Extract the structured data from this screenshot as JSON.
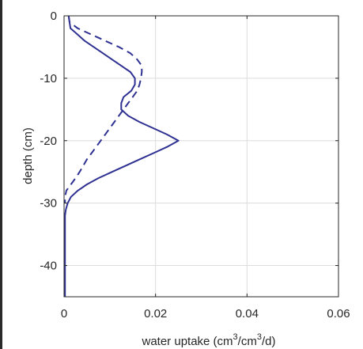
{
  "chart_data": {
    "type": "line",
    "title": "",
    "xlabel": "water uptake (cm",
    "xlabel_sup1": "3",
    "xlabel_mid": "/cm",
    "xlabel_sup2": "3",
    "xlabel_end": "/d)",
    "ylabel": "depth (cm)",
    "xlim": [
      0,
      0.06
    ],
    "ylim": [
      -45,
      0
    ],
    "xticks": [
      0,
      0.02,
      0.04,
      0.06
    ],
    "xtick_labels": [
      "0",
      "0.02",
      "0.04",
      "0.06"
    ],
    "yticks": [
      0,
      -10,
      -20,
      -30,
      -40
    ],
    "ytick_labels": [
      "0",
      "-10",
      "-20",
      "-30",
      "-40"
    ],
    "grid": true,
    "line_color": "#2e3192",
    "series": [
      {
        "style": "solid",
        "points": [
          [
            0.001,
            0
          ],
          [
            0.0012,
            -1
          ],
          [
            0.0014,
            -2
          ],
          [
            0.003,
            -3
          ],
          [
            0.0045,
            -4
          ],
          [
            0.0065,
            -5
          ],
          [
            0.0085,
            -6
          ],
          [
            0.0105,
            -7
          ],
          [
            0.0125,
            -8
          ],
          [
            0.0145,
            -9
          ],
          [
            0.0155,
            -10
          ],
          [
            0.0155,
            -11
          ],
          [
            0.0147,
            -12
          ],
          [
            0.013,
            -13
          ],
          [
            0.0125,
            -14
          ],
          [
            0.0125,
            -15
          ],
          [
            0.014,
            -16
          ],
          [
            0.0165,
            -17
          ],
          [
            0.0195,
            -18
          ],
          [
            0.0225,
            -19
          ],
          [
            0.025,
            -20
          ],
          [
            0.0225,
            -21
          ],
          [
            0.0195,
            -22
          ],
          [
            0.0165,
            -23
          ],
          [
            0.0135,
            -24
          ],
          [
            0.0105,
            -25
          ],
          [
            0.0075,
            -26
          ],
          [
            0.005,
            -27
          ],
          [
            0.003,
            -28
          ],
          [
            0.0015,
            -29
          ],
          [
            0.0008,
            -30
          ],
          [
            0.0004,
            -31
          ],
          [
            0.0002,
            -32
          ],
          [
            0.0002,
            -35
          ],
          [
            0.0002,
            -40
          ],
          [
            0.0002,
            -45
          ]
        ]
      },
      {
        "style": "dashed",
        "points": [
          [
            0.001,
            0
          ],
          [
            0.0012,
            -1
          ],
          [
            0.003,
            -2
          ],
          [
            0.006,
            -3
          ],
          [
            0.009,
            -4
          ],
          [
            0.012,
            -5
          ],
          [
            0.0145,
            -6
          ],
          [
            0.016,
            -7
          ],
          [
            0.017,
            -8
          ],
          [
            0.017,
            -9
          ],
          [
            0.0168,
            -10
          ],
          [
            0.0165,
            -11
          ],
          [
            0.016,
            -12
          ],
          [
            0.015,
            -13
          ],
          [
            0.014,
            -14
          ],
          [
            0.013,
            -15
          ],
          [
            0.012,
            -16
          ],
          [
            0.011,
            -17
          ],
          [
            0.01,
            -18
          ],
          [
            0.009,
            -19
          ],
          [
            0.008,
            -20
          ],
          [
            0.007,
            -21
          ],
          [
            0.006,
            -22
          ],
          [
            0.005,
            -23
          ],
          [
            0.0042,
            -24
          ],
          [
            0.0034,
            -25
          ],
          [
            0.0025,
            -26
          ],
          [
            0.0015,
            -27
          ],
          [
            0.0005,
            -28
          ],
          [
            0.0002,
            -29
          ],
          [
            0.0002,
            -30
          ]
        ]
      }
    ]
  }
}
